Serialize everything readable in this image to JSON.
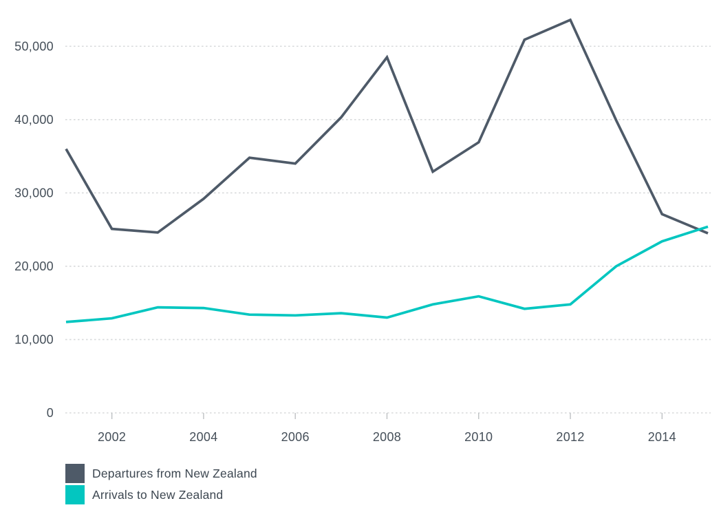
{
  "chart_data": {
    "type": "line",
    "title": "",
    "xlabel": "",
    "ylabel": "",
    "x": [
      2001,
      2002,
      2003,
      2004,
      2005,
      2006,
      2007,
      2008,
      2009,
      2010,
      2011,
      2012,
      2013,
      2014,
      2015
    ],
    "series": [
      {
        "name": "Departures from New Zealand",
        "color": "#4e5a68",
        "values": [
          36000,
          25100,
          24600,
          29200,
          34800,
          34000,
          40300,
          48500,
          32900,
          36900,
          50900,
          53600,
          39900,
          27100,
          24500
        ]
      },
      {
        "name": "Arrivals to New Zealand",
        "color": "#03c6c0",
        "values": [
          12400,
          12900,
          14400,
          14300,
          13400,
          13300,
          13600,
          13000,
          14800,
          15900,
          14200,
          14800,
          20000,
          23400,
          25400
        ]
      }
    ],
    "x_ticks": [
      2002,
      2004,
      2006,
      2008,
      2010,
      2012,
      2014
    ],
    "x_tick_labels": [
      "2002",
      "2004",
      "2006",
      "2008",
      "2010",
      "2012",
      "2014"
    ],
    "y_ticks": [
      0,
      10000,
      20000,
      30000,
      40000,
      50000
    ],
    "y_tick_labels": [
      "0",
      "10,000",
      "20,000",
      "30,000",
      "40,000",
      "50,000"
    ],
    "xlim": [
      2001,
      2015
    ],
    "ylim": [
      0,
      55000
    ],
    "grid": "horizontal-dashed",
    "legend_position": "bottom-left"
  }
}
